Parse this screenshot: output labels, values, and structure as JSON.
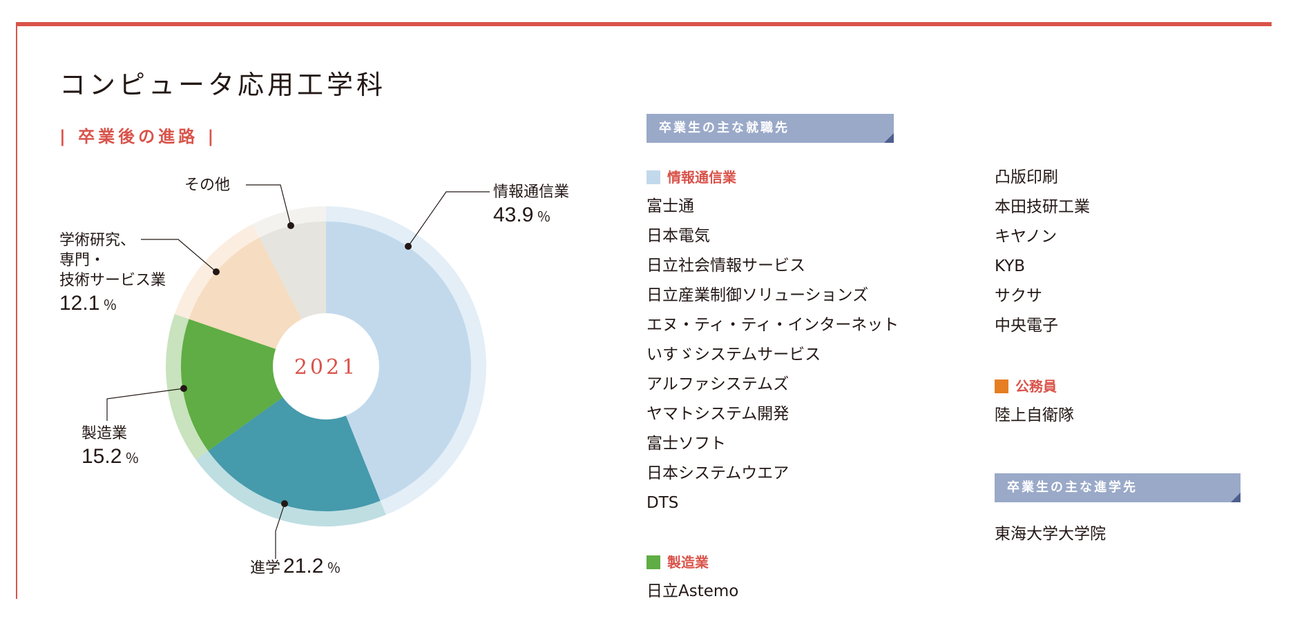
{
  "header": {
    "title": "コンピュータ応用工学科",
    "section_heading": "| 卒業後の進路 |"
  },
  "colors": {
    "accent_red": "#d9534a",
    "banner_blue": "#9aa9c8"
  },
  "chart_data": {
    "type": "pie",
    "center_label": "2021",
    "slices": [
      {
        "label": "情報通信業",
        "value": 43.9,
        "color": "#c2d9ec",
        "ring_color": "#e3eef7"
      },
      {
        "label": "進学",
        "value": 21.2,
        "color": "#459aab",
        "ring_color": "#bedee2"
      },
      {
        "label": "製造業",
        "value": 15.2,
        "color": "#5fad44",
        "ring_color": "#c8e3bd"
      },
      {
        "label": "学術研究、専門・技術サービス業",
        "value": 12.1,
        "color": "#f6dcc0",
        "ring_color": "#fbede0"
      },
      {
        "label": "その他",
        "value": 7.6,
        "color": "#e5e4de",
        "ring_color": "#f3f2ee"
      }
    ],
    "labels": {
      "info": {
        "name": "情報通信業",
        "pct": "43.9",
        "unit": "％"
      },
      "advance": {
        "name": "進学",
        "pct": "21.2",
        "unit": "％"
      },
      "manufacturing": {
        "name": "製造業",
        "pct": "15.2",
        "unit": "％"
      },
      "research": {
        "line1": "学術研究、",
        "line2": "専門・",
        "line3": "技術サービス業",
        "pct": "12.1",
        "unit": "％"
      },
      "other": {
        "name": "その他"
      }
    }
  },
  "employment": {
    "banner": "卒業生の主な就職先",
    "info_heading": "情報通信業",
    "info_color": "#c2d9ec",
    "info_companies": [
      "富士通",
      "日本電気",
      "日立社会情報サービス",
      "日立産業制御ソリューションズ",
      "エヌ・ティ・ティ・インターネット",
      "いすゞシステムサービス",
      "アルファシステムズ",
      "ヤマトシステム開発",
      "富士ソフト",
      "日本システムウエア",
      "DTS"
    ],
    "manufacturing_heading": "製造業",
    "manufacturing_color": "#5fad44",
    "manufacturing_companies": [
      "日立Astemo",
      "凸版印刷",
      "本田技研工業",
      "キヤノン",
      "KYB",
      "サクサ",
      "中央電子"
    ],
    "public_heading": "公務員",
    "public_color": "#e67e22",
    "public_companies": [
      "陸上自衛隊"
    ]
  },
  "further_study": {
    "banner": "卒業生の主な進学先",
    "schools": [
      "東海大学大学院"
    ]
  }
}
